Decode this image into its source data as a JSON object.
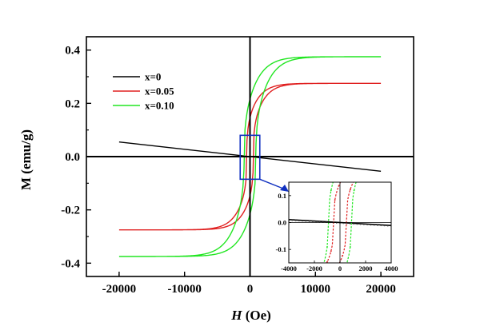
{
  "chart_data": {
    "type": "line",
    "xlabel": {
      "italic": "H",
      "rest": " (Oe)"
    },
    "ylabel": "M (emu/g)",
    "xlim": [
      -25000,
      25000
    ],
    "ylim": [
      -0.45,
      0.45
    ],
    "xticks": [
      -20000,
      -10000,
      0,
      10000,
      20000
    ],
    "yticks": [
      -0.4,
      -0.2,
      0.0,
      0.2,
      0.4
    ],
    "xtick_labels": [
      "-20000",
      "-10000",
      "0",
      "10000",
      "20000"
    ],
    "ytick_labels": [
      "-0.4",
      "-0.2",
      "0.0",
      "0.2",
      "0.4"
    ],
    "zero_lines": true,
    "legend_position": "top-left",
    "series": [
      {
        "name": "x=0",
        "color": "#000000",
        "kind": "linear",
        "x": [
          -20000,
          20000
        ],
        "y": [
          0.055,
          -0.055
        ]
      },
      {
        "name": "x=0.05",
        "color": "#e02020",
        "kind": "hysteresis",
        "ms": 0.275,
        "hsat": 20000,
        "hc": 500,
        "a": 3000,
        "p": 0.35
      },
      {
        "name": "x=0.10",
        "color": "#22e622",
        "kind": "hysteresis",
        "ms": 0.375,
        "hsat": 20000,
        "hc": 900,
        "a": 3500,
        "p": 0.4
      }
    ],
    "zoom_box": {
      "x": [
        -1500,
        1500
      ],
      "y": [
        -0.085,
        0.08
      ],
      "color": "#1030c0"
    },
    "inset": {
      "xlim": [
        -4000,
        4000
      ],
      "ylim": [
        -0.15,
        0.15
      ],
      "xticks": [
        -4000,
        -2000,
        0,
        2000,
        4000
      ],
      "yticks": [
        -0.1,
        0.0,
        0.1
      ],
      "xtick_labels": [
        "-4000",
        "-2000",
        "0",
        "2000",
        "4000"
      ],
      "ytick_labels": [
        "-0.1",
        "0.0",
        "0.1"
      ],
      "line_style": "dashed-with-dots"
    }
  }
}
